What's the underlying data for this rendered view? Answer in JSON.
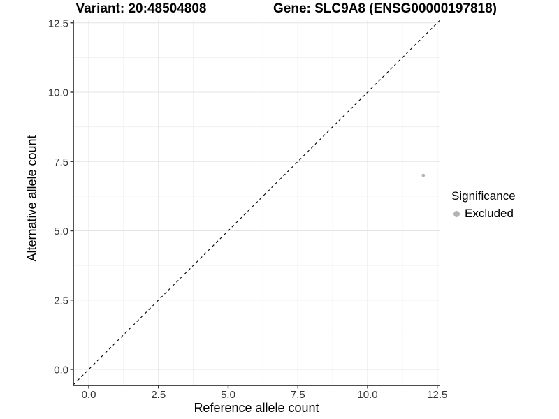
{
  "chart_data": {
    "type": "scatter",
    "titles": {
      "left": "Variant: 20:48504808",
      "right": "Gene: SLC9A8 (ENSG00000197818)"
    },
    "xlabel": "Reference allele count",
    "ylabel": "Alternative allele count",
    "xticks": [
      0.0,
      2.5,
      5.0,
      7.5,
      10.0,
      12.5
    ],
    "yticks": [
      0.0,
      2.5,
      5.0,
      7.5,
      10.0,
      12.5
    ],
    "xtick_labels": [
      "0.0",
      "2.5",
      "5.0",
      "7.5",
      "10.0",
      "12.5"
    ],
    "ytick_labels": [
      "0.0",
      "2.5",
      "5.0",
      "7.5",
      "10.0",
      "12.5"
    ],
    "minor_ticks": [
      1.25,
      3.75,
      6.25,
      8.75,
      11.25
    ],
    "xlim": [
      -0.6,
      12.6
    ],
    "ylim": [
      -0.6,
      12.6
    ],
    "grid": true,
    "reference_line": {
      "type": "identity",
      "style": "dashed",
      "color": "#000000"
    },
    "series": [
      {
        "name": "Excluded",
        "color": "#b5b5b5",
        "points": [
          {
            "x": 12,
            "y": 7
          }
        ]
      }
    ],
    "legend": {
      "title": "Significance",
      "position": "right",
      "items": [
        {
          "label": "Excluded",
          "color": "#b3b3b3"
        }
      ]
    },
    "colors": {
      "background": "#ffffff",
      "grid_major": "#e4e4e4",
      "grid_minor": "#f0f0f0",
      "axis_line": "#333333",
      "tick_text": "#333333"
    }
  }
}
